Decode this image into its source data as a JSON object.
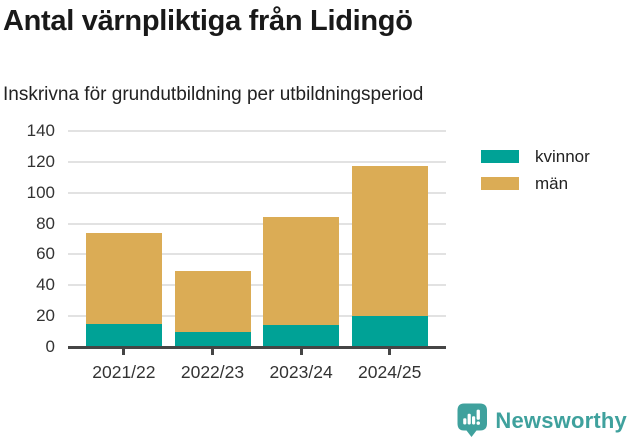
{
  "header": {
    "title": "Antal värnpliktiga från Lidingö",
    "subtitle": "Inskrivna för grundutbildning per utbildningsperiod"
  },
  "chart_data": {
    "type": "bar",
    "stacked": true,
    "title": "Antal värnpliktiga från Lidingö",
    "subtitle": "Inskrivna för grundutbildning per utbildningsperiod",
    "categories": [
      "2021/22",
      "2022/23",
      "2023/24",
      "2024/25"
    ],
    "series": [
      {
        "name": "kvinnor",
        "color": "#00A296",
        "values": [
          15,
          10,
          14,
          20
        ]
      },
      {
        "name": "män",
        "color": "#DBAC55",
        "values": [
          59,
          39,
          70,
          97
        ]
      }
    ],
    "stack_totals": [
      74,
      49,
      84,
      117
    ],
    "xlabel": "",
    "ylabel": "",
    "ylim": [
      0,
      140
    ],
    "ytick_step": 20,
    "ytick_labels": [
      "0",
      "20",
      "40",
      "60",
      "80",
      "100",
      "120",
      "140"
    ],
    "grid": true,
    "legend_position": "top-right",
    "axis_color": "#454545",
    "gridline_color": "#e2e2e2",
    "tick_label_color": "#333333"
  },
  "branding": {
    "name": "Newsworthy",
    "color": "#3FA19D",
    "icon": "bar-chart-speech-bubble-icon"
  }
}
